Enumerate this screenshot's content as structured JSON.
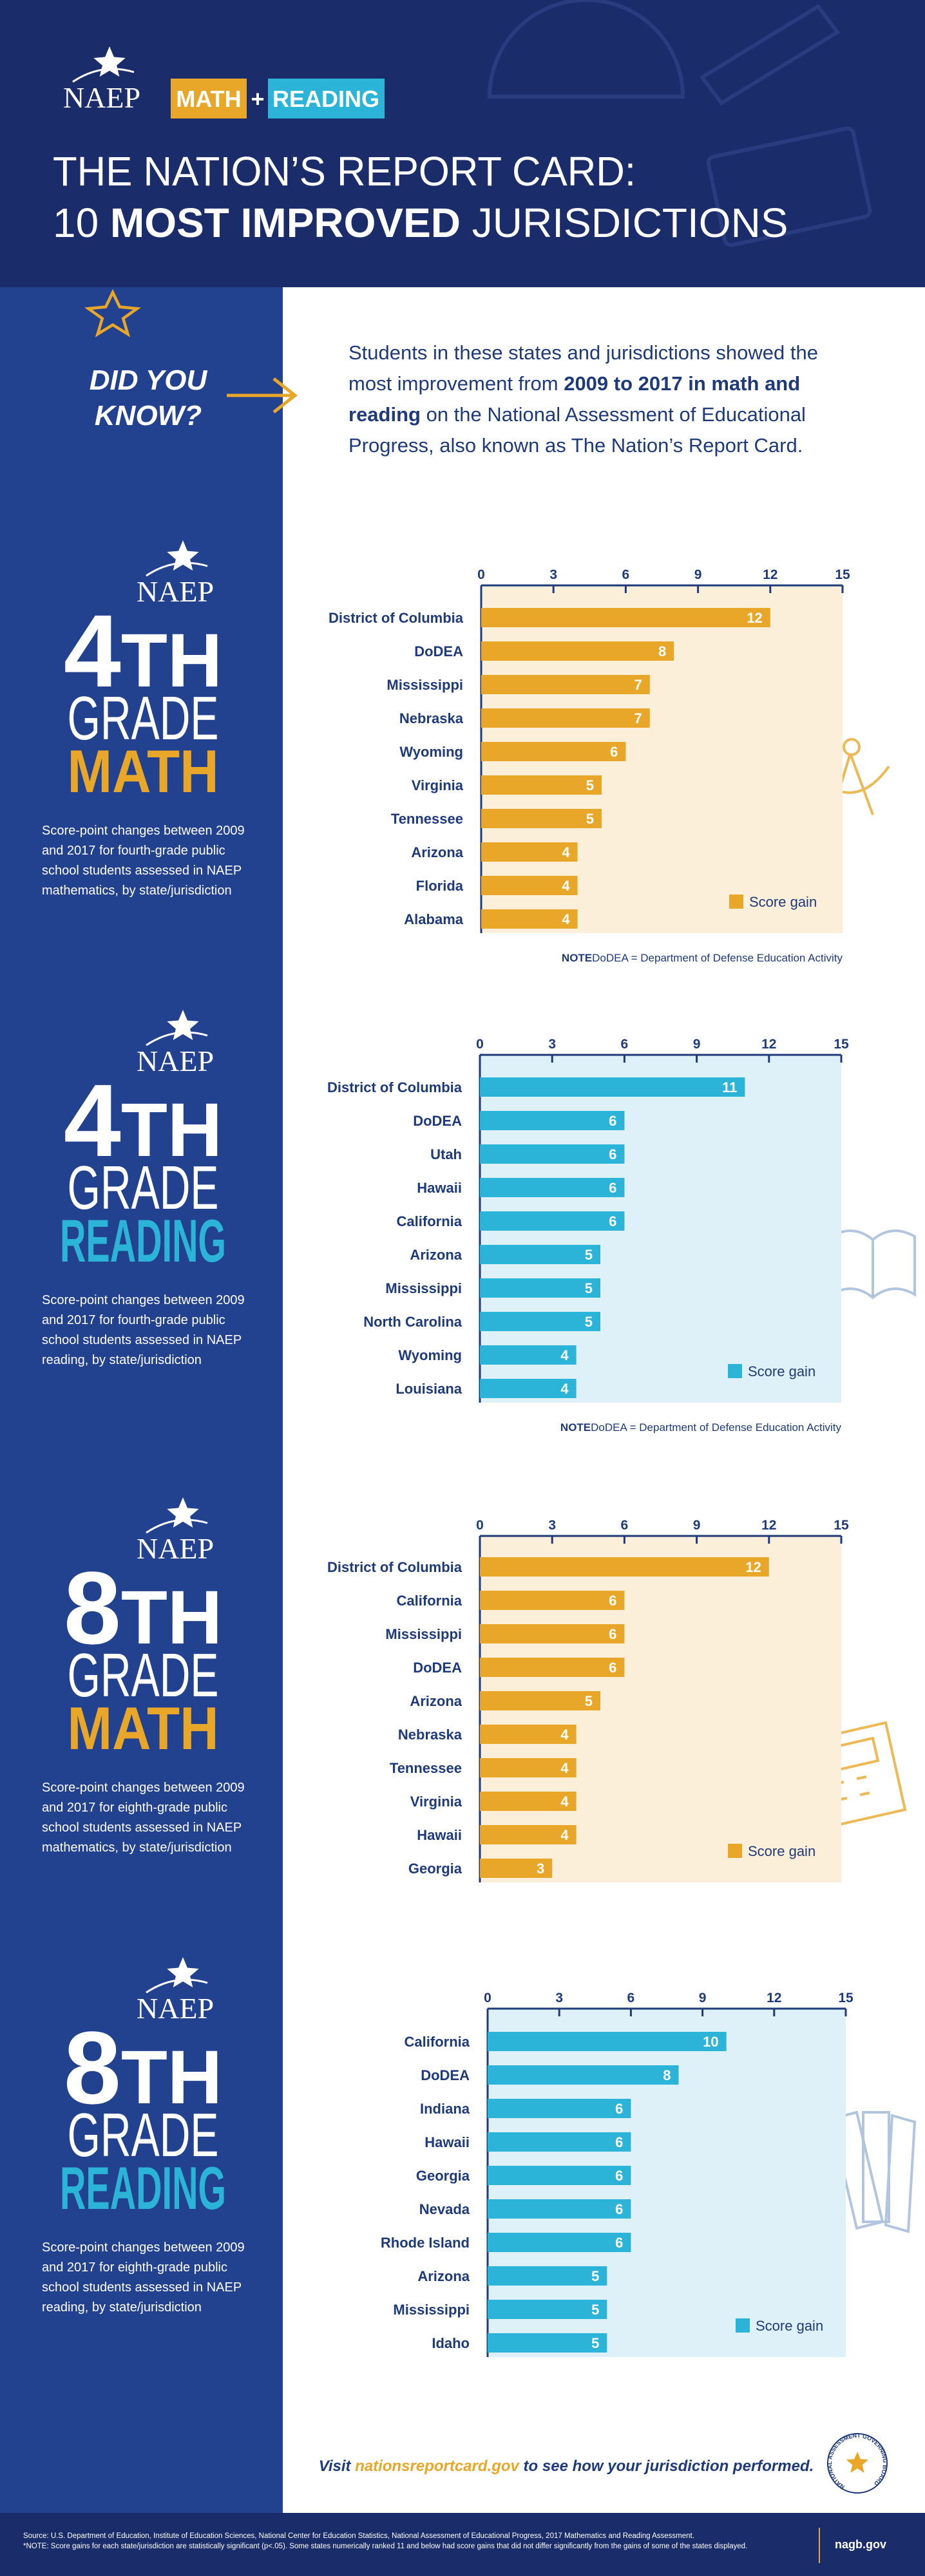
{
  "header": {
    "logo": "NAEP",
    "badge_math": "MATH",
    "badge_plus": "+",
    "badge_reading": "READING",
    "title_line1": "THE NATION’S REPORT CARD:",
    "title_line2_prefix": "10 ",
    "title_line2_bold": "MOST IMPROVED",
    "title_line2_suffix": " JURISDICTIONS"
  },
  "callout": {
    "label_line1": "DID YOU",
    "label_line2": "KNOW?",
    "text_before": "Students in these states and jurisdictions showed the most improvement from ",
    "text_bold": "2009 to 2017 in math and reading",
    "text_after": " on the National Assessment of Educational Progress, also known as The Nation’s Report Card."
  },
  "sections": [
    {
      "logo": "NAEP",
      "grade_number": "4",
      "grade_suffix": "TH",
      "grade": "GRADE",
      "subject": "MATH",
      "color": "#e9a72a",
      "description": "Score-point changes between 2009 and 2017 for fourth-grade public school students assessed in NAEP mathematics, by state/jurisdiction"
    },
    {
      "logo": "NAEP",
      "grade_number": "4",
      "grade_suffix": "TH",
      "grade": "GRADE",
      "subject": "READING",
      "color": "#2bb4d8",
      "description": "Score-point changes between 2009 and 2017 for fourth-grade public school students assessed in NAEP reading, by state/jurisdiction"
    },
    {
      "logo": "NAEP",
      "grade_number": "8",
      "grade_suffix": "TH",
      "grade": "GRADE",
      "subject": "MATH",
      "color": "#e9a72a",
      "description": "Score-point changes between 2009 and 2017 for eighth-grade public school students assessed in NAEP mathematics, by state/jurisdiction"
    },
    {
      "logo": "NAEP",
      "grade_number": "8",
      "grade_suffix": "TH",
      "grade": "GRADE",
      "subject": "READING",
      "color": "#2bb4d8",
      "description": "Score-point changes between 2009 and 2017 for eighth-grade public school students assessed in NAEP reading, by state/jurisdiction"
    }
  ],
  "chart_data": [
    {
      "type": "bar",
      "orientation": "horizontal",
      "background": "#fbefd9",
      "categories": [
        "District of Columbia",
        "DoDEA",
        "Mississippi",
        "Nebraska",
        "Wyoming",
        "Virginia",
        "Tennessee",
        "Arizona",
        "Florida",
        "Alabama"
      ],
      "series": [
        {
          "name": "Score gain",
          "color": "#e9a72a",
          "values": [
            12,
            8,
            7,
            7,
            6,
            5,
            5,
            4,
            4,
            4
          ]
        }
      ],
      "xlim": [
        0,
        15
      ],
      "xticks": [
        0,
        3,
        6,
        9,
        12,
        15
      ],
      "note_label": "NOTE",
      "note": "DoDEA = Department of Defense Education Activity"
    },
    {
      "type": "bar",
      "orientation": "horizontal",
      "background": "#dff1f8",
      "categories": [
        "District of Columbia",
        "DoDEA",
        "Utah",
        "Hawaii",
        "California",
        "Arizona",
        "Mississippi",
        "North Carolina",
        "Wyoming",
        "Louisiana"
      ],
      "series": [
        {
          "name": "Score gain",
          "color": "#2bb4d8",
          "values": [
            11,
            6,
            6,
            6,
            6,
            5,
            5,
            5,
            4,
            4
          ]
        }
      ],
      "xlim": [
        0,
        15
      ],
      "xticks": [
        0,
        3,
        6,
        9,
        12,
        15
      ],
      "note_label": "NOTE",
      "note": "DoDEA = Department of Defense Education Activity"
    },
    {
      "type": "bar",
      "orientation": "horizontal",
      "background": "#fbefd9",
      "categories": [
        "District of Columbia",
        "California",
        "Mississippi",
        "DoDEA",
        "Arizona",
        "Nebraska",
        "Tennessee",
        "Virginia",
        "Hawaii",
        "Georgia"
      ],
      "series": [
        {
          "name": "Score gain",
          "color": "#e9a72a",
          "values": [
            12,
            6,
            6,
            6,
            5,
            4,
            4,
            4,
            4,
            3
          ]
        }
      ],
      "xlim": [
        0,
        15
      ],
      "xticks": [
        0,
        3,
        6,
        9,
        12,
        15
      ]
    },
    {
      "type": "bar",
      "orientation": "horizontal",
      "background": "#dff1f8",
      "categories": [
        "California",
        "DoDEA",
        "Indiana",
        "Hawaii",
        "Georgia",
        "Nevada",
        "Rhode Island",
        "Arizona",
        "Mississippi",
        "Idaho"
      ],
      "series": [
        {
          "name": "Score gain",
          "color": "#2bb4d8",
          "values": [
            10,
            8,
            6,
            6,
            6,
            6,
            6,
            5,
            5,
            5
          ]
        }
      ],
      "xlim": [
        0,
        15
      ],
      "xticks": [
        0,
        3,
        6,
        9,
        12,
        15
      ]
    }
  ],
  "footer": {
    "visit_before": "Visit ",
    "visit_link": "nationsreportcard.gov",
    "visit_after": " to see how your jurisdiction performed.",
    "board_name": "NATIONAL ASSESSMENT GOVERNING BOARD",
    "source": "Source: U.S. Department of Education, Institute of Education Sciences, National Center for Education Statistics, National Assessment of Educational Progress, 2017 Mathematics and Reading Assessment.",
    "source_note": "*NOTE: Score gains for each state/jurisdiction are statistically significant (p<.05). Some states numerically ranked 11 and below had score gains that did not differ significantly from the gains of some of the states displayed.",
    "site": "nagb.gov"
  }
}
